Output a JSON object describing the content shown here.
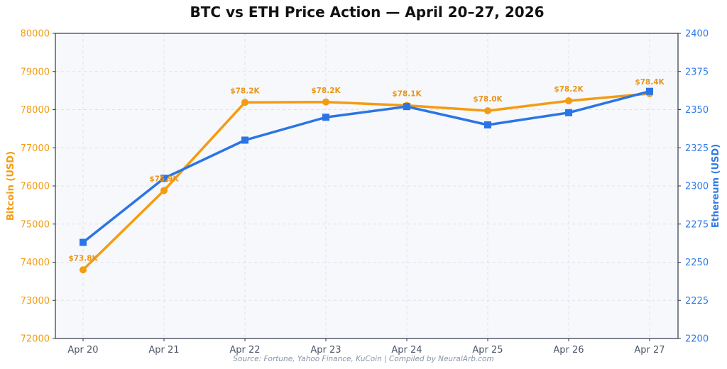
{
  "chart_data": {
    "type": "line",
    "title": "BTC vs ETH Price Action — April 20–27, 2026",
    "categories": [
      "Apr 20",
      "Apr 21",
      "Apr 22",
      "Apr 23",
      "Apr 24",
      "Apr 25",
      "Apr 26",
      "Apr 27"
    ],
    "series": [
      {
        "axis": "left",
        "color": "#f39c12",
        "marker": "circle",
        "values": [
          73800,
          75880,
          78190,
          78200,
          78110,
          77970,
          78230,
          78420
        ],
        "data_labels": [
          "$73.8K",
          "$75.9K",
          "$78.2K",
          "$78.2K",
          "$78.1K",
          "$78.0K",
          "$78.2K",
          "$78.4K"
        ]
      },
      {
        "axis": "right",
        "color": "#2a75e6",
        "marker": "square",
        "values": [
          2263,
          2305,
          2330,
          2345,
          2352,
          2340,
          2348,
          2362
        ],
        "data_labels": []
      }
    ],
    "ylabel_left": "Bitcoin (USD)",
    "ylabel_right": "Ethereum (USD)",
    "ylim_left": [
      72000,
      80000
    ],
    "ylim_right": [
      2200,
      2400
    ],
    "yticks_left": [
      "72000",
      "73000",
      "74000",
      "75000",
      "76000",
      "77000",
      "78000",
      "79000",
      "80000"
    ],
    "yticks_right": [
      "2200",
      "2225",
      "2250",
      "2275",
      "2300",
      "2325",
      "2350",
      "2375",
      "2400"
    ],
    "grid": true,
    "legend": "none",
    "source": "Source: Fortune, Yahoo Finance, KuCoin | Compiled by NeuralArb.com"
  }
}
